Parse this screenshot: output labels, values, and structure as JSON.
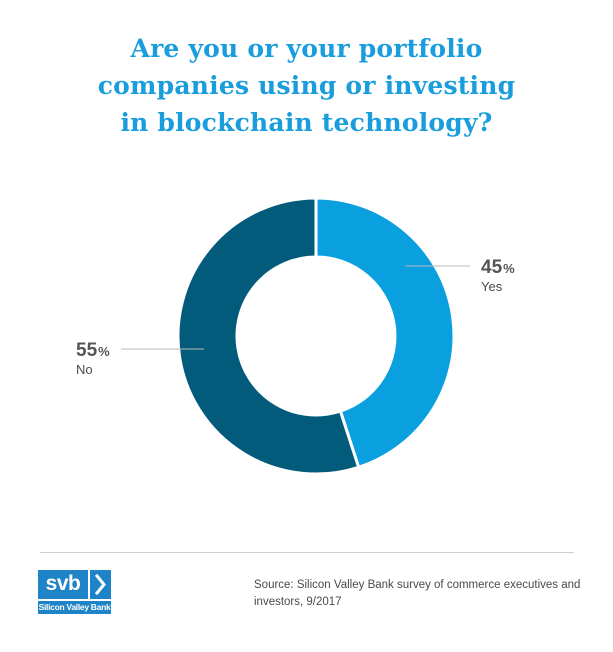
{
  "title": {
    "lines": [
      "Are you or your portfolio",
      "companies using or investing",
      "in blockchain technology?"
    ]
  },
  "chart_data": {
    "type": "pie",
    "style": "donut",
    "slices": [
      {
        "label": "Yes",
        "value": 45,
        "value_text": "45",
        "unit": "%",
        "color": "#0aa0e0"
      },
      {
        "label": "No",
        "value": 55,
        "value_text": "55",
        "unit": "%",
        "color": "#035b7b"
      }
    ]
  },
  "footer": {
    "source": "Source: Silicon Valley Bank survey of commerce executives and investors, 9/2017",
    "logo_text": "svb",
    "logo_subtext": "Silicon Valley Bank"
  },
  "colors": {
    "title": "#199ddc",
    "yes": "#0aa0e0",
    "no": "#035b7b",
    "label_value": "#555555",
    "label_name": "#4a4a4a",
    "leader": "#b8b8b8",
    "logo": "#1f83c7"
  }
}
